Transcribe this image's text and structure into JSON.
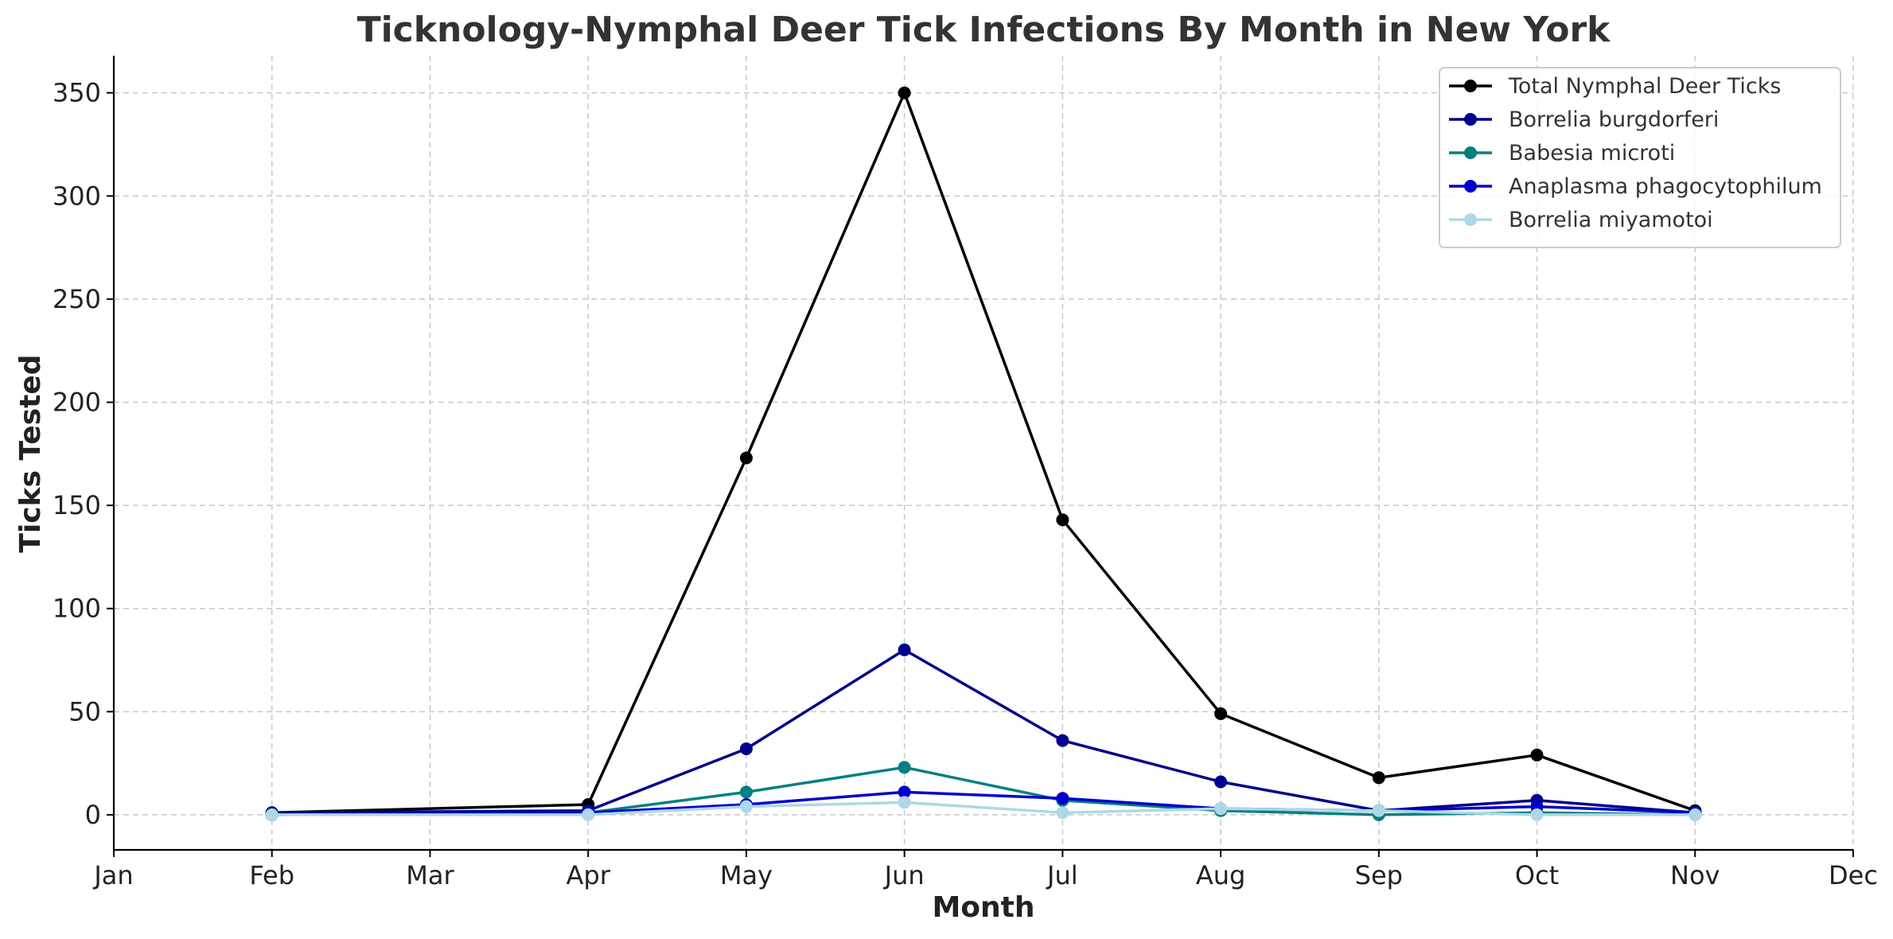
{
  "chart_data": {
    "type": "line",
    "title": "Ticknology-Nymphal Deer Tick Infections By Month in New York",
    "xlabel": "Month",
    "ylabel": "Ticks Tested",
    "x_ticks": [
      "Jan",
      "Feb",
      "Mar",
      "Apr",
      "May",
      "Jun",
      "Jul",
      "Aug",
      "Sep",
      "Oct",
      "Nov",
      "Dec"
    ],
    "x_range": [
      0,
      11
    ],
    "ylim": [
      -17,
      368
    ],
    "y_ticks": [
      0,
      50,
      100,
      150,
      200,
      250,
      300,
      350
    ],
    "grid": true,
    "legend": "top-right",
    "series": [
      {
        "name": "Total Nymphal Deer Ticks",
        "color": "#000000",
        "x": [
          "Feb",
          "Apr",
          "May",
          "Jun",
          "Jul",
          "Aug",
          "Sep",
          "Oct",
          "Nov"
        ],
        "values": [
          1,
          5,
          173,
          350,
          143,
          49,
          18,
          29,
          2
        ]
      },
      {
        "name": "Borrelia burgdorferi",
        "color": "#00008b",
        "x": [
          "Feb",
          "Apr",
          "May",
          "Jun",
          "Jul",
          "Aug",
          "Sep",
          "Oct",
          "Nov"
        ],
        "values": [
          1,
          2,
          32,
          80,
          36,
          16,
          2,
          7,
          1
        ]
      },
      {
        "name": "Babesia microti",
        "color": "#008080",
        "x": [
          "Feb",
          "Apr",
          "May",
          "Jun",
          "Jul",
          "Aug",
          "Sep",
          "Oct",
          "Nov"
        ],
        "values": [
          0,
          1,
          11,
          23,
          7,
          2,
          0,
          1,
          0
        ]
      },
      {
        "name": "Anaplasma phagocytophilum",
        "color": "#0000cd",
        "x": [
          "Feb",
          "Apr",
          "May",
          "Jun",
          "Jul",
          "Aug",
          "Sep",
          "Oct",
          "Nov"
        ],
        "values": [
          0,
          1,
          5,
          11,
          8,
          3,
          2,
          4,
          1
        ]
      },
      {
        "name": "Borrelia miyamotoi",
        "color": "#add8e6",
        "x": [
          "Feb",
          "Apr",
          "May",
          "Jun",
          "Jul",
          "Aug",
          "Sep",
          "Oct",
          "Nov"
        ],
        "values": [
          0,
          0,
          4,
          6,
          1,
          3,
          2,
          0,
          0
        ]
      }
    ]
  }
}
